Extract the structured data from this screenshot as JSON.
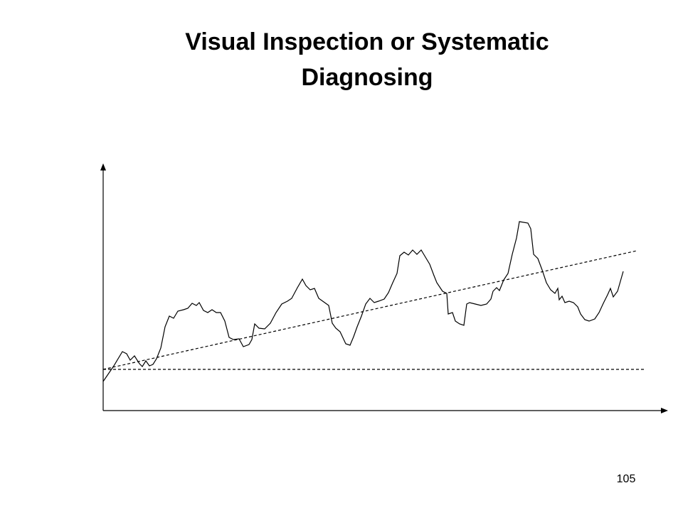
{
  "header": {
    "title": [
      "Visual Inspection or Systematic",
      "Diagnosing"
    ]
  },
  "footer": {
    "page_number": "105"
  }
}
